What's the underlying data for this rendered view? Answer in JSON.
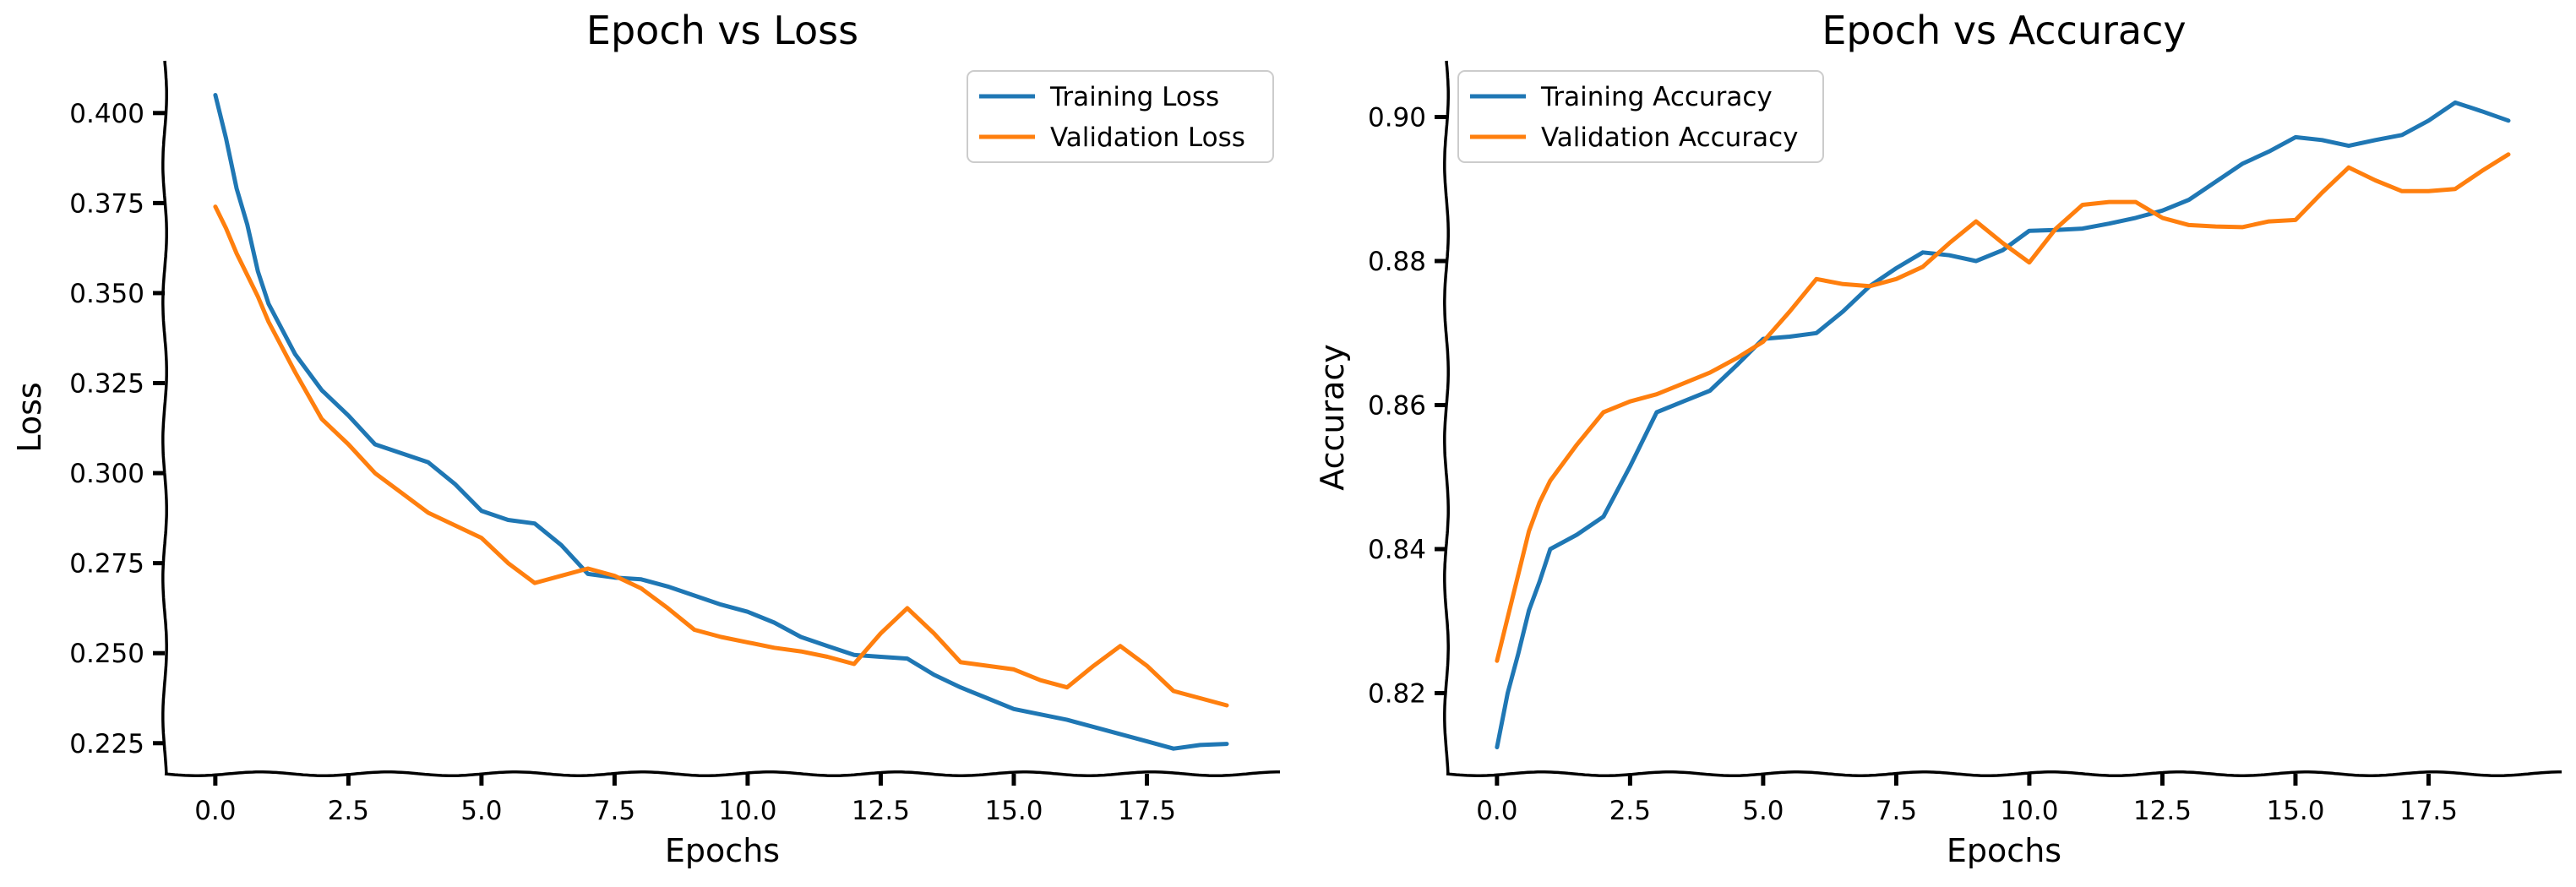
{
  "chart_data": [
    {
      "type": "line",
      "title": "Epoch vs Loss",
      "xlabel": "Epochs",
      "ylabel": "Loss",
      "xlim": [
        -0.95,
        20.0
      ],
      "ylim": [
        0.2165,
        0.4145
      ],
      "xticks": [
        0,
        2.5,
        5,
        7.5,
        10,
        12.5,
        15,
        17.5
      ],
      "xtick_labels": [
        "0.0",
        "2.5",
        "5.0",
        "7.5",
        "10.0",
        "12.5",
        "15.0",
        "17.5"
      ],
      "yticks": [
        0.225,
        0.25,
        0.275,
        0.3,
        0.325,
        0.35,
        0.375,
        0.4
      ],
      "ytick_labels": [
        "0.225",
        "0.250",
        "0.275",
        "0.300",
        "0.325",
        "0.350",
        "0.375",
        "0.400"
      ],
      "legend_position": "upper right",
      "grid": false,
      "series": [
        {
          "name": "Training Loss",
          "color": "#1f77b4",
          "x": [
            0,
            0.2,
            0.4,
            0.6,
            0.8,
            1,
            1.5,
            2,
            2.5,
            3,
            3.5,
            4,
            4.5,
            5,
            5.5,
            6,
            6.5,
            7,
            7.5,
            8,
            8.5,
            9,
            9.5,
            10,
            10.5,
            11,
            11.5,
            12,
            12.5,
            13,
            13.5,
            14,
            14.5,
            15,
            15.5,
            16,
            16.5,
            17,
            17.5,
            18,
            18.5,
            19
          ],
          "y": [
            0.405,
            0.393,
            0.379,
            0.369,
            0.356,
            0.347,
            0.333,
            0.323,
            0.316,
            0.308,
            0.3055,
            0.303,
            0.297,
            0.2895,
            0.287,
            0.286,
            0.28,
            0.272,
            0.271,
            0.2705,
            0.2685,
            0.266,
            0.2635,
            0.2615,
            0.2585,
            0.2545,
            0.252,
            0.2495,
            0.249,
            0.2485,
            0.244,
            0.2405,
            0.2375,
            0.2345,
            0.233,
            0.2315,
            0.2295,
            0.2275,
            0.2255,
            0.2235,
            0.2245,
            0.2248
          ]
        },
        {
          "name": "Validation Loss",
          "color": "#ff7f0e",
          "x": [
            0,
            0.2,
            0.4,
            0.6,
            0.8,
            1,
            1.5,
            2,
            2.5,
            3,
            3.5,
            4,
            4.5,
            5,
            5.5,
            6,
            6.5,
            7,
            7.5,
            8,
            8.5,
            9,
            9.5,
            10,
            10.5,
            11,
            11.5,
            12,
            12.5,
            13,
            13.5,
            14,
            14.5,
            15,
            15.5,
            16,
            16.5,
            17,
            17.5,
            18,
            18.5,
            19
          ],
          "y": [
            0.374,
            0.368,
            0.361,
            0.355,
            0.349,
            0.342,
            0.328,
            0.315,
            0.308,
            0.3,
            0.2945,
            0.289,
            0.2855,
            0.282,
            0.275,
            0.2695,
            0.2715,
            0.2735,
            0.2715,
            0.268,
            0.2625,
            0.2565,
            0.2545,
            0.253,
            0.2515,
            0.2505,
            0.249,
            0.247,
            0.2555,
            0.2625,
            0.2555,
            0.2475,
            0.2465,
            0.2455,
            0.2425,
            0.2405,
            0.2465,
            0.252,
            0.2465,
            0.2395,
            0.2375,
            0.2355
          ]
        }
      ]
    },
    {
      "type": "line",
      "title": "Epoch vs Accuracy",
      "xlabel": "Epochs",
      "ylabel": "Accuracy",
      "xlim": [
        -0.95,
        20.0
      ],
      "ylim": [
        0.8088,
        0.9078
      ],
      "xticks": [
        0,
        2.5,
        5,
        7.5,
        10,
        12.5,
        15,
        17.5
      ],
      "xtick_labels": [
        "0.0",
        "2.5",
        "5.0",
        "7.5",
        "10.0",
        "12.5",
        "15.0",
        "17.5"
      ],
      "yticks": [
        0.82,
        0.84,
        0.86,
        0.88,
        0.9
      ],
      "ytick_labels": [
        "0.82",
        "0.84",
        "0.86",
        "0.88",
        "0.90"
      ],
      "legend_position": "upper left",
      "grid": false,
      "series": [
        {
          "name": "Training Accuracy",
          "color": "#1f77b4",
          "x": [
            0,
            0.2,
            0.4,
            0.6,
            0.8,
            1,
            1.5,
            2,
            2.5,
            3,
            3.5,
            4,
            4.5,
            5,
            5.5,
            6,
            6.5,
            7,
            7.5,
            8,
            8.5,
            9,
            9.5,
            10,
            10.5,
            11,
            11.5,
            12,
            12.5,
            13,
            13.5,
            14,
            14.5,
            15,
            15.5,
            16,
            16.5,
            17,
            17.5,
            18,
            18.5,
            19
          ],
          "y": [
            0.8125,
            0.82,
            0.8255,
            0.8315,
            0.8355,
            0.84,
            0.842,
            0.8445,
            0.8515,
            0.859,
            0.8605,
            0.862,
            0.8655,
            0.8692,
            0.8695,
            0.87,
            0.873,
            0.8765,
            0.879,
            0.8812,
            0.8808,
            0.88,
            0.8815,
            0.8842,
            0.8843,
            0.8845,
            0.8852,
            0.886,
            0.887,
            0.8885,
            0.891,
            0.8935,
            0.8952,
            0.8972,
            0.8968,
            0.896,
            0.8968,
            0.8975,
            0.8995,
            0.902,
            0.9008,
            0.8995
          ]
        },
        {
          "name": "Validation Accuracy",
          "color": "#ff7f0e",
          "x": [
            0,
            0.2,
            0.4,
            0.6,
            0.8,
            1,
            1.5,
            2,
            2.5,
            3,
            3.5,
            4,
            4.5,
            5,
            5.5,
            6,
            6.5,
            7,
            7.5,
            8,
            8.5,
            9,
            9.5,
            10,
            10.5,
            11,
            11.5,
            12,
            12.5,
            13,
            13.5,
            14,
            14.5,
            15,
            15.5,
            16,
            16.5,
            17,
            17.5,
            18,
            18.5,
            19
          ],
          "y": [
            0.8245,
            0.8305,
            0.8365,
            0.8425,
            0.8465,
            0.8495,
            0.8545,
            0.859,
            0.8605,
            0.8615,
            0.863,
            0.8645,
            0.8665,
            0.8688,
            0.873,
            0.8775,
            0.8768,
            0.8765,
            0.8775,
            0.8792,
            0.8825,
            0.8855,
            0.8825,
            0.8798,
            0.8845,
            0.8878,
            0.8882,
            0.8882,
            0.886,
            0.885,
            0.8848,
            0.8847,
            0.8855,
            0.8857,
            0.8895,
            0.893,
            0.8912,
            0.8897,
            0.8897,
            0.89,
            0.8925,
            0.8948
          ]
        }
      ]
    }
  ]
}
